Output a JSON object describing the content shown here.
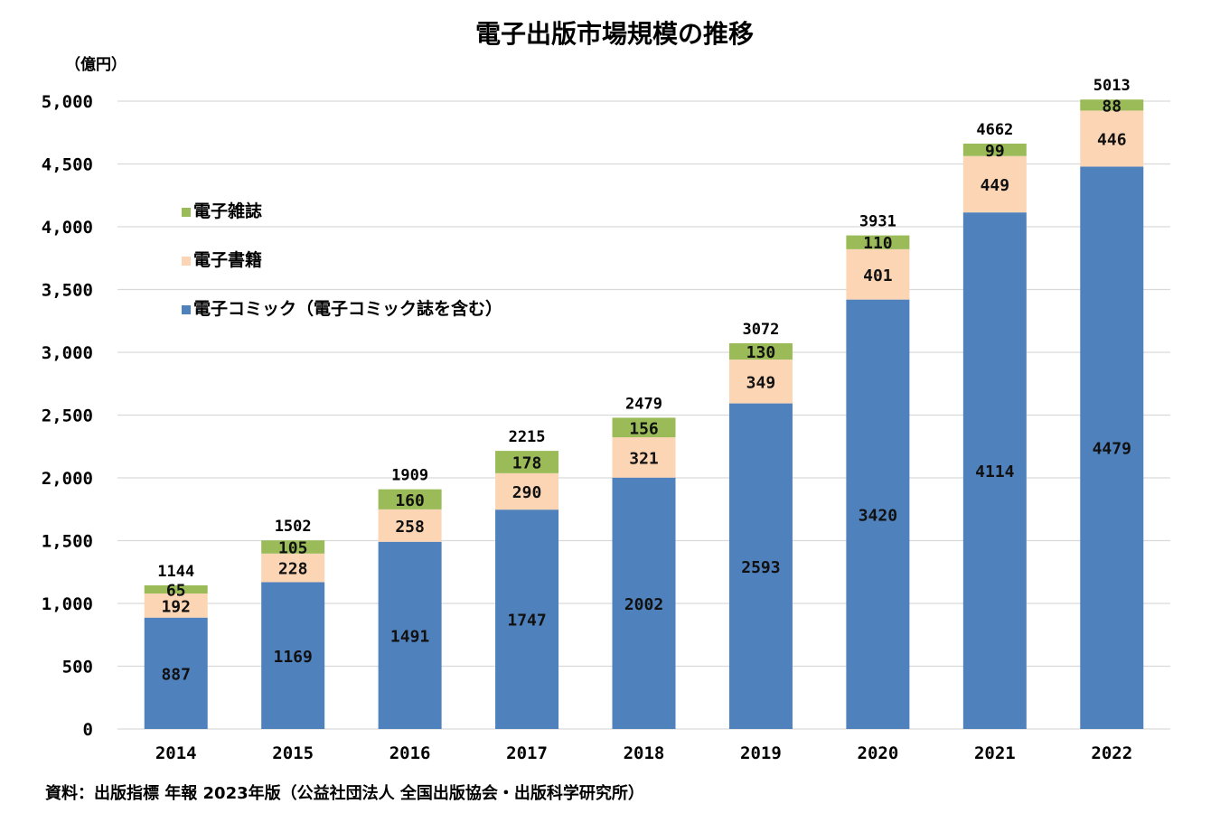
{
  "chart_data": {
    "type": "bar",
    "stacked": true,
    "title": "電子出版市場規模の推移",
    "unit_label": "（億円）",
    "categories": [
      "2014",
      "2015",
      "2016",
      "2017",
      "2018",
      "2019",
      "2020",
      "2021",
      "2022"
    ],
    "series": [
      {
        "name": "電子コミック（電子コミック誌を含む）",
        "color": "#4f81bd",
        "values": [
          887,
          1169,
          1491,
          1747,
          2002,
          2593,
          3420,
          4114,
          4479
        ]
      },
      {
        "name": "電子書籍",
        "color": "#fcd5b5",
        "values": [
          192,
          228,
          258,
          290,
          321,
          349,
          401,
          449,
          446
        ]
      },
      {
        "name": "電子雑誌",
        "color": "#9bbb59",
        "values": [
          65,
          105,
          160,
          178,
          156,
          130,
          110,
          99,
          88
        ]
      }
    ],
    "totals": [
      1144,
      1502,
      1909,
      2215,
      2479,
      3072,
      3931,
      4662,
      5013
    ],
    "ylim": [
      0,
      5000
    ],
    "yticks": [
      "0",
      "500",
      "1,000",
      "1,500",
      "2,000",
      "2,500",
      "3,000",
      "3,500",
      "4,000",
      "4,500",
      "5,000"
    ],
    "ytick_values": [
      0,
      500,
      1000,
      1500,
      2000,
      2500,
      3000,
      3500,
      4000,
      4500,
      5000
    ],
    "grid": true,
    "legend_order": [
      "電子雑誌",
      "電子書籍",
      "電子コミック（電子コミック誌を含む）"
    ],
    "legend_position": "top-left"
  },
  "source_note": "資料：出版指標 年報 2023年版（公益社団法人 全国出版協会・出版科学研究所）"
}
